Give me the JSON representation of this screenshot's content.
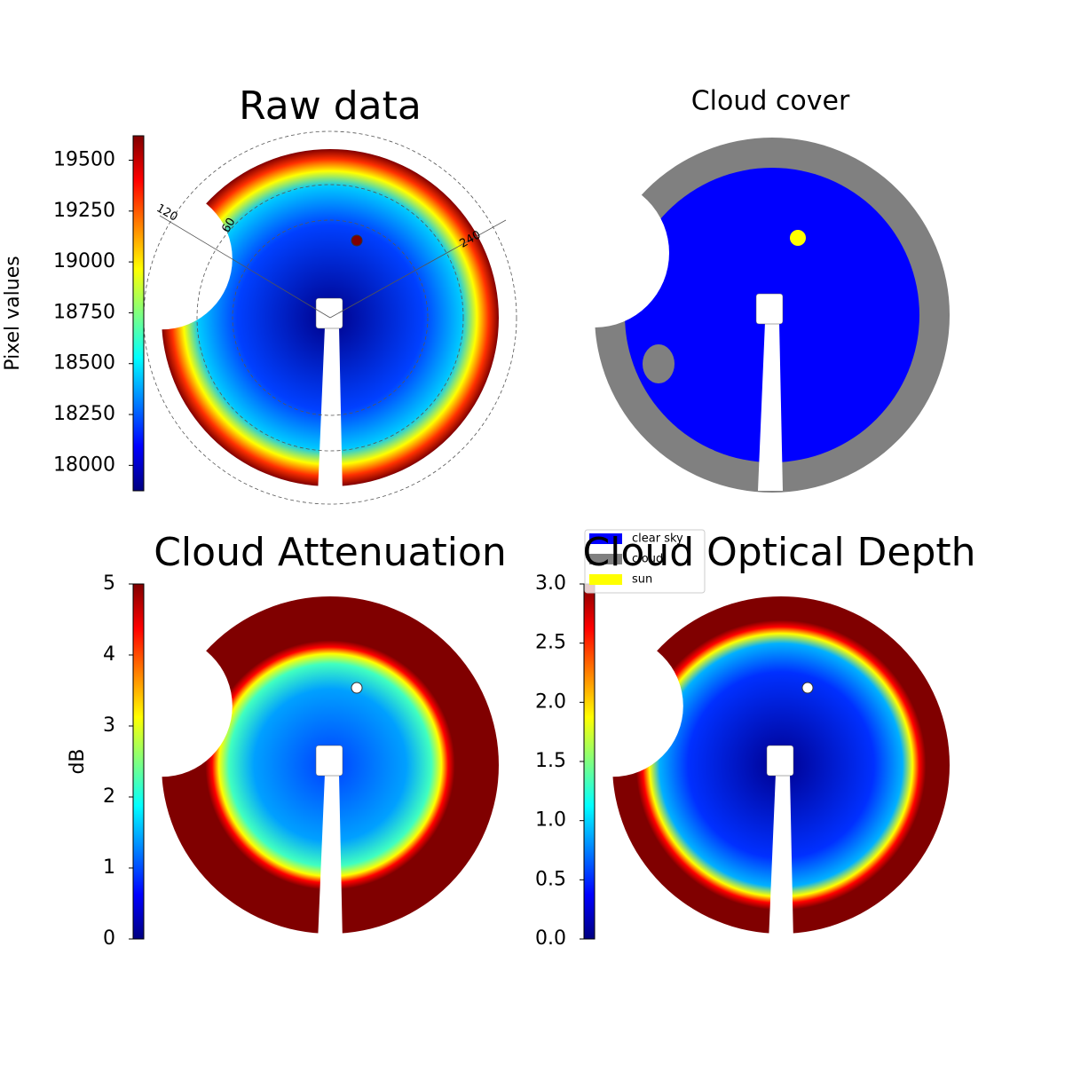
{
  "chart_data": [
    {
      "type": "image",
      "title": "Raw data",
      "colorbar": {
        "label": "Pixel values",
        "lim": [
          17875,
          19620
        ],
        "ticks": [
          18000,
          18250,
          18500,
          18750,
          19000,
          19250,
          19500
        ]
      },
      "polar_labels": [
        "120",
        "60",
        "240"
      ]
    },
    {
      "type": "image",
      "title": "Cloud cover",
      "legend": [
        {
          "name": "clear sky",
          "color": "#0000ff"
        },
        {
          "name": "cloud",
          "color": "#808080"
        },
        {
          "name": "sun",
          "color": "#ffff00"
        }
      ]
    },
    {
      "type": "image",
      "title": "Cloud Attenuation",
      "colorbar": {
        "label": "dB",
        "lim": [
          0,
          5
        ],
        "ticks": [
          0,
          1,
          2,
          3,
          4,
          5
        ]
      }
    },
    {
      "type": "image",
      "title": "Cloud Optical Depth",
      "colorbar": {
        "lim": [
          0,
          3
        ],
        "ticks": [
          {
            "value": 0,
            "label": "0.0"
          },
          {
            "value": 0.5,
            "label": "0.5"
          },
          {
            "value": 1,
            "label": "1.0"
          },
          {
            "value": 1.5,
            "label": "1.5"
          },
          {
            "value": 2,
            "label": "2.0"
          },
          {
            "value": 2.5,
            "label": "2.5"
          },
          {
            "value": 3,
            "label": "3.0"
          }
        ]
      }
    }
  ]
}
